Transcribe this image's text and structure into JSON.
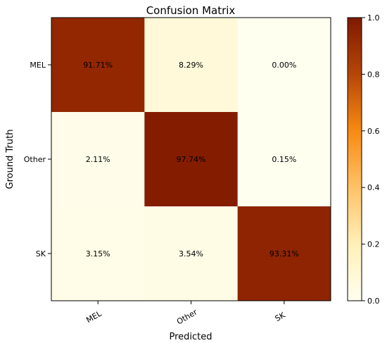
{
  "chart_data": {
    "type": "heatmap",
    "title": "Confusion Matrix",
    "xlabel": "Predicted",
    "ylabel": "Ground Truth",
    "x_categories": [
      "MEL",
      "Other",
      "SK"
    ],
    "y_categories": [
      "MEL",
      "Other",
      "SK"
    ],
    "values": [
      [
        91.71,
        8.29,
        0.0
      ],
      [
        2.11,
        97.74,
        0.15
      ],
      [
        3.15,
        3.54,
        93.31
      ]
    ],
    "cell_labels": [
      [
        "91.71%",
        "8.29%",
        "0.00%"
      ],
      [
        "2.11%",
        "97.74%",
        "0.15%"
      ],
      [
        "3.15%",
        "3.54%",
        "93.31%"
      ]
    ],
    "colormap": "afmhot_r",
    "colorbar": {
      "range": [
        0.0,
        1.0
      ],
      "ticks": [
        0.0,
        0.2,
        0.4,
        0.6,
        0.8,
        1.0
      ],
      "tick_labels": [
        "0.0",
        "0.2",
        "0.4",
        "0.6",
        "0.8",
        "1.0"
      ]
    }
  }
}
